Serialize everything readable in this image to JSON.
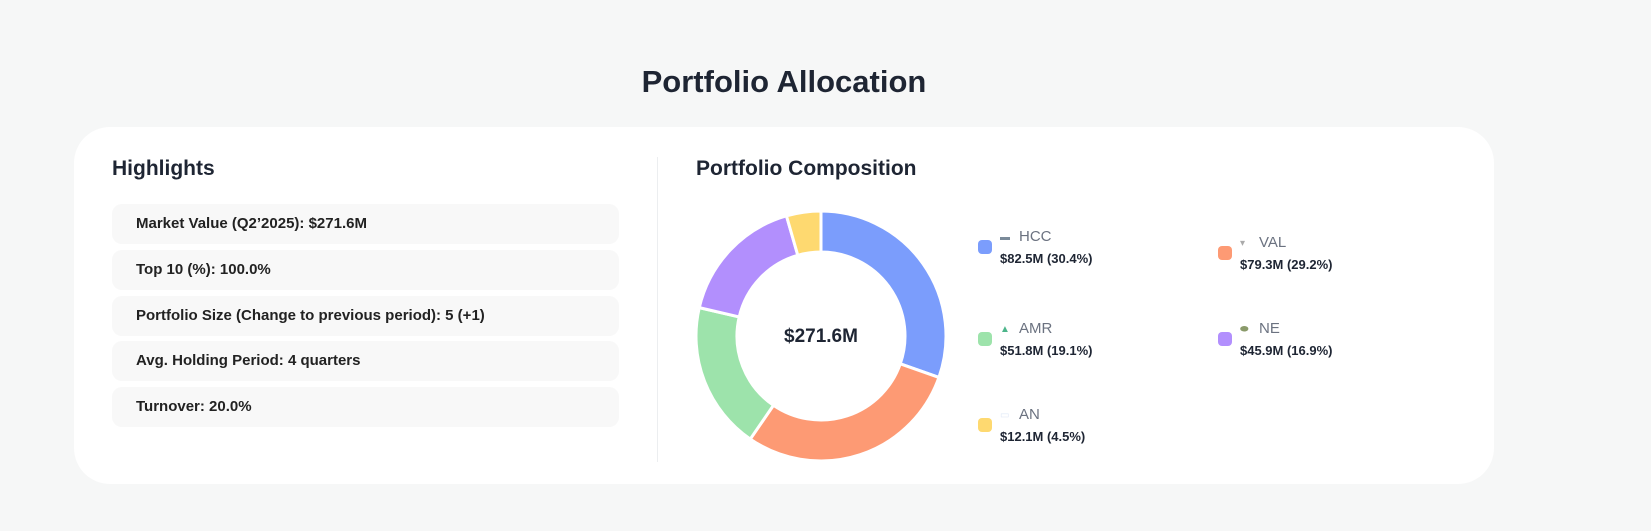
{
  "title": "Portfolio Allocation",
  "highlights": {
    "heading": "Highlights",
    "items": [
      "Market Value (Q2’2025): $271.6M",
      "Top 10 (%): 100.0%",
      "Portfolio Size (Change to previous period): 5 (+1)",
      "Avg. Holding Period: 4 quarters",
      "Turnover: 20.0%"
    ]
  },
  "composition": {
    "heading": "Portfolio Composition",
    "center_label": "$271.6M"
  },
  "chart_data": {
    "type": "pie",
    "donut": true,
    "center_label": "$271.6M",
    "slices": [
      {
        "name": "HCC",
        "value": 82.5,
        "percent": 30.4,
        "label": "$82.5M (30.4%)",
        "color": "#7b9dfc",
        "icon": "hcc-logo-icon"
      },
      {
        "name": "VAL",
        "value": 79.3,
        "percent": 29.2,
        "label": "$79.3M (29.2%)",
        "color": "#fd9a74",
        "icon": "val-logo-icon"
      },
      {
        "name": "AMR",
        "value": 51.8,
        "percent": 19.1,
        "label": "$51.8M (19.1%)",
        "color": "#9de3ab",
        "icon": "amr-logo-icon"
      },
      {
        "name": "NE",
        "value": 45.9,
        "percent": 16.9,
        "label": "$45.9M (16.9%)",
        "color": "#b28ffd",
        "icon": "ne-logo-icon"
      },
      {
        "name": "AN",
        "value": 12.1,
        "percent": 4.5,
        "label": "$12.1M (4.5%)",
        "color": "#fed970",
        "icon": "an-logo-icon"
      }
    ]
  }
}
